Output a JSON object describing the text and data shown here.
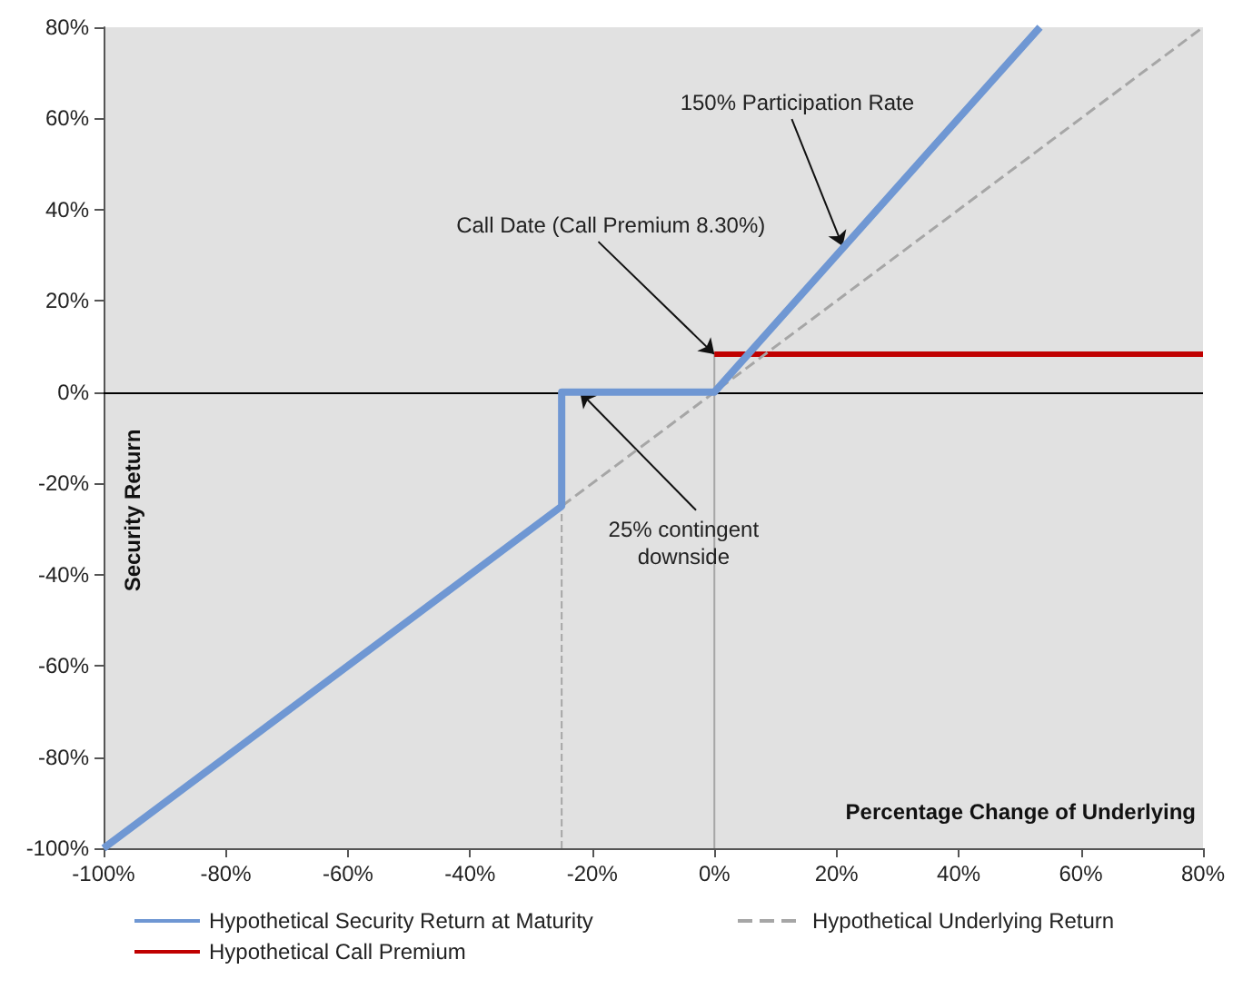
{
  "chart_data": {
    "type": "line",
    "xlabel": "Percentage Change of Underlying",
    "ylabel": "Security Return",
    "xlim": [
      -100,
      80
    ],
    "xticks": [
      {
        "value": -100,
        "label": "-100%"
      },
      {
        "value": -80,
        "label": "-80%"
      },
      {
        "value": -60,
        "label": "-60%"
      },
      {
        "value": -40,
        "label": "-40%"
      },
      {
        "value": -20,
        "label": "-20%"
      },
      {
        "value": 0,
        "label": "0%"
      },
      {
        "value": 20,
        "label": "20%"
      },
      {
        "value": 40,
        "label": "40%"
      },
      {
        "value": 60,
        "label": "60%"
      },
      {
        "value": 80,
        "label": "80%"
      }
    ],
    "ylim": [
      -100,
      80
    ],
    "yticks": [
      {
        "value": -100,
        "label": "-100%"
      },
      {
        "value": -80,
        "label": "-80%"
      },
      {
        "value": -60,
        "label": "-60%"
      },
      {
        "value": -40,
        "label": "-40%"
      },
      {
        "value": -20,
        "label": "-20%"
      },
      {
        "value": 0,
        "label": "0%"
      },
      {
        "value": 20,
        "label": "20%"
      },
      {
        "value": 40,
        "label": "40%"
      },
      {
        "value": 60,
        "label": "60%"
      },
      {
        "value": 80,
        "label": "80%"
      }
    ],
    "series": [
      {
        "name": "Hypothetical Security Return at Maturity",
        "color": "#6f97d3",
        "line_style": "solid",
        "x": [
          -100,
          -25,
          -25,
          0,
          53.3
        ],
        "values": [
          -100,
          -25,
          0,
          0,
          80
        ]
      },
      {
        "name": "Hypothetical Underlying Return",
        "color": "#a6a6a6",
        "line_style": "dashed",
        "x": [
          -100,
          80
        ],
        "values": [
          -100,
          80
        ]
      },
      {
        "name": "Hypothetical Call Premium",
        "color": "#c00000",
        "line_style": "solid",
        "x": [
          0,
          80
        ],
        "values": [
          8.3,
          8.3
        ]
      },
      {
        "color": "#a6a6a6",
        "line_style": "dashed",
        "x": [
          -25,
          -25
        ],
        "values": [
          -100,
          -25
        ]
      },
      {
        "color": "#a6a6a6",
        "line_style": "solid",
        "x": [
          0,
          0
        ],
        "values": [
          -100,
          8.3
        ]
      }
    ],
    "ref_lines": [
      {
        "axis": "y",
        "value": 0,
        "color": "#000000"
      }
    ],
    "annotations": [
      {
        "text": "150% Participation Rate",
        "x": 21,
        "y": 32
      },
      {
        "text": "Call Date (Call Premium 8.30%)",
        "x": 0,
        "y": 8.3
      },
      {
        "text": "25% contingent\ndownside",
        "x": -22,
        "y": 0
      }
    ],
    "legend": "bottom",
    "marker": "none",
    "grid": false
  }
}
